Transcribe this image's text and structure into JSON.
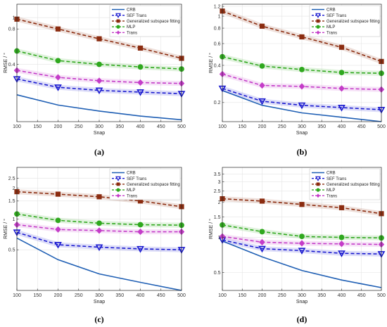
{
  "chart_data": [
    {
      "type": "line",
      "panel_label": "(a)",
      "xlabel": "Snap",
      "ylabel": "RMSE / °",
      "y_scale": "log",
      "x": [
        100,
        200,
        300,
        400,
        500
      ],
      "xlim": [
        100,
        500
      ],
      "ylim": [
        0.13,
        1.3
      ],
      "xticks": [
        100,
        150,
        200,
        250,
        300,
        350,
        400,
        450,
        500
      ],
      "yticks": [
        0.4,
        0.8,
        1
      ],
      "ytick_labels": [
        "0.4",
        "0.8",
        "1"
      ],
      "grid": true,
      "legend_position": "top-right",
      "series": [
        {
          "name": "CRB",
          "color": "#1f5fb4",
          "style": "solid",
          "marker": "none",
          "values": [
            0.22,
            0.18,
            0.16,
            0.145,
            0.135
          ]
        },
        {
          "name": "SEF Trans",
          "color": "#1a1ad0",
          "style": "dashed",
          "marker": "triangle-down",
          "values": [
            0.3,
            0.255,
            0.24,
            0.232,
            0.225
          ]
        },
        {
          "name": "Generalized subspace fitting",
          "color": "#8b2c10",
          "style": "dashed",
          "marker": "square",
          "values": [
            0.97,
            0.8,
            0.66,
            0.55,
            0.45
          ]
        },
        {
          "name": "MLP",
          "color": "#2fa81e",
          "style": "dashed",
          "marker": "circle",
          "values": [
            0.52,
            0.43,
            0.4,
            0.38,
            0.365
          ]
        },
        {
          "name": "Trans",
          "color": "#c43cc8",
          "style": "dashed",
          "marker": "diamond",
          "values": [
            0.355,
            0.31,
            0.29,
            0.28,
            0.275
          ]
        }
      ]
    },
    {
      "type": "line",
      "panel_label": "(b)",
      "xlabel": "Snap",
      "ylabel": "RMSE / °",
      "y_scale": "log",
      "x": [
        100,
        200,
        300,
        400,
        500
      ],
      "xlim": [
        100,
        500
      ],
      "ylim": [
        0.14,
        1.25
      ],
      "xticks": [
        100,
        150,
        200,
        250,
        300,
        350,
        400,
        450,
        500
      ],
      "yticks": [
        0.2,
        0.4,
        0.6,
        0.8,
        1,
        1.2
      ],
      "ytick_labels": [
        "0.2",
        "0.4",
        "0.6",
        "0.8",
        "1",
        "1.2"
      ],
      "grid": true,
      "legend_position": "top-right",
      "series": [
        {
          "name": "CRB",
          "color": "#1f5fb4",
          "style": "solid",
          "marker": "none",
          "values": [
            0.25,
            0.19,
            0.165,
            0.152,
            0.14
          ]
        },
        {
          "name": "SEF Trans",
          "color": "#1a1ad0",
          "style": "dashed",
          "marker": "triangle-down",
          "values": [
            0.26,
            0.205,
            0.19,
            0.182,
            0.175
          ]
        },
        {
          "name": "Generalized subspace fitting",
          "color": "#8b2c10",
          "style": "dashed",
          "marker": "square",
          "values": [
            1.1,
            0.83,
            0.68,
            0.56,
            0.43
          ]
        },
        {
          "name": "MLP",
          "color": "#2fa81e",
          "style": "dashed",
          "marker": "circle",
          "values": [
            0.47,
            0.395,
            0.37,
            0.35,
            0.345
          ]
        },
        {
          "name": "Trans",
          "color": "#c43cc8",
          "style": "dashed",
          "marker": "diamond",
          "values": [
            0.34,
            0.275,
            0.27,
            0.26,
            0.255
          ]
        }
      ]
    },
    {
      "type": "line",
      "panel_label": "(c)",
      "xlabel": "Snap",
      "ylabel": "RMSE / °",
      "y_scale": "log",
      "x": [
        100,
        200,
        300,
        400,
        500
      ],
      "xlim": [
        100,
        500
      ],
      "ylim": [
        0.2,
        3.2
      ],
      "xticks": [
        100,
        150,
        200,
        250,
        300,
        350,
        400,
        450,
        500
      ],
      "yticks": [
        0.5,
        1,
        1.5,
        2,
        2.5
      ],
      "ytick_labels": [
        "0.5",
        "1",
        "1.5",
        "2",
        "2.5"
      ],
      "grid": true,
      "legend_position": "top-right",
      "series": [
        {
          "name": "CRB",
          "color": "#1f5fb4",
          "style": "solid",
          "marker": "none",
          "values": [
            0.65,
            0.4,
            0.29,
            0.24,
            0.2
          ]
        },
        {
          "name": "SEF Trans",
          "color": "#1a1ad0",
          "style": "dashed",
          "marker": "triangle-down",
          "values": [
            0.74,
            0.56,
            0.53,
            0.51,
            0.5
          ]
        },
        {
          "name": "Generalized subspace fitting",
          "color": "#8b2c10",
          "style": "dashed",
          "marker": "square",
          "values": [
            1.85,
            1.75,
            1.65,
            1.5,
            1.32
          ]
        },
        {
          "name": "MLP",
          "color": "#2fa81e",
          "style": "dashed",
          "marker": "circle",
          "values": [
            1.12,
            0.97,
            0.91,
            0.88,
            0.87
          ]
        },
        {
          "name": "Trans",
          "color": "#c43cc8",
          "style": "dashed",
          "marker": "diamond",
          "values": [
            0.88,
            0.79,
            0.77,
            0.75,
            0.75
          ]
        }
      ]
    },
    {
      "type": "line",
      "panel_label": "(d)",
      "xlabel": "Snap",
      "ylabel": "RMSE / °",
      "y_scale": "log",
      "x": [
        100,
        200,
        300,
        400,
        500
      ],
      "xlim": [
        100,
        500
      ],
      "ylim": [
        0.35,
        4.0
      ],
      "xticks": [
        100,
        150,
        200,
        250,
        300,
        350,
        400,
        450,
        500
      ],
      "yticks": [
        0.5,
        1,
        1.5,
        2,
        2.5,
        3,
        3.5
      ],
      "ytick_labels": [
        "0.5",
        "1",
        "1.5",
        "2",
        "2.5",
        "3",
        "3.5"
      ],
      "grid": true,
      "legend_position": "top-right",
      "series": [
        {
          "name": "CRB",
          "color": "#1f5fb4",
          "style": "solid",
          "marker": "none",
          "values": [
            0.93,
            0.68,
            0.52,
            0.43,
            0.37
          ]
        },
        {
          "name": "SEF Trans",
          "color": "#1a1ad0",
          "style": "dashed",
          "marker": "triangle-down",
          "values": [
            0.95,
            0.8,
            0.77,
            0.73,
            0.72
          ]
        },
        {
          "name": "Generalized subspace fitting",
          "color": "#8b2c10",
          "style": "dashed",
          "marker": "square",
          "values": [
            2.15,
            2.05,
            1.92,
            1.8,
            1.6
          ]
        },
        {
          "name": "MLP",
          "color": "#2fa81e",
          "style": "dashed",
          "marker": "circle",
          "values": [
            1.28,
            1.12,
            1.02,
            1.0,
            0.99
          ]
        },
        {
          "name": "Trans",
          "color": "#c43cc8",
          "style": "dashed",
          "marker": "diamond",
          "values": [
            1.02,
            0.91,
            0.89,
            0.88,
            0.87
          ]
        }
      ]
    }
  ]
}
